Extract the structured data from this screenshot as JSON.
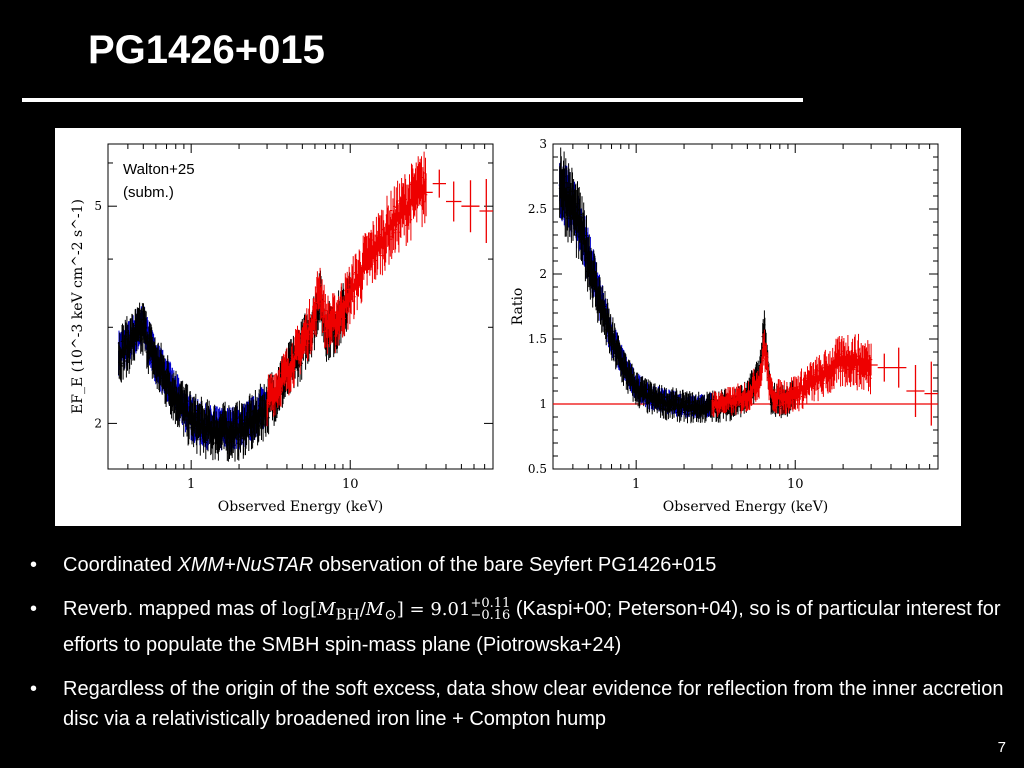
{
  "slide": {
    "title": "PG1426+015",
    "page_number": "7"
  },
  "figure": {
    "annotation_line1": "Walton+25",
    "annotation_line2": "(subm.)"
  },
  "bullets": [
    {
      "parts": {
        "p1": "Coordinated ",
        "p2": "XMM",
        "p3": "+",
        "p4": "NuSTAR",
        "p5": " observation of the bare Seyfert PG1426+015"
      }
    },
    {
      "parts": {
        "p1": "Reverb. mapped mas of ",
        "log": "log",
        "mbh": "M",
        "bh_sub": "BH",
        "msun": "M",
        "sun_sub": "⊙",
        "eq": " = 9.01",
        "sup": "+0.11",
        "sub": "−0.16",
        "p2": " (Kaspi+00; Peterson+04), so is of particular interest for efforts to populate the SMBH spin-mass plane (Piotrowska+24)"
      }
    },
    {
      "parts": {
        "p1": "Regardless of the origin of the soft excess, data show clear evidence for reflection from the inner accretion disc via a relativistically broadened iron line + Compton hump"
      }
    }
  ],
  "colors": {
    "xmm_pn": "#0000cc",
    "xmm_mos": "#000000",
    "nustar": "#ee0000",
    "reference_line": "#ee0000"
  },
  "chart_data": [
    {
      "type": "line",
      "xlabel": "Observed Energy (keV)",
      "ylabel": "EF_E (10^-3 keV cm^-2 s^-1)",
      "x_scale": "log",
      "y_scale": "log",
      "xlim": [
        0.3,
        79
      ],
      "ylim": [
        1.65,
        6.5
      ],
      "x_ticks": [
        1,
        10
      ],
      "x_tick_labels": [
        "1",
        "10"
      ],
      "y_ticks": [
        2,
        5
      ],
      "y_tick_labels": [
        "2",
        "5"
      ],
      "series": [
        {
          "x": [
            0.35,
            0.4,
            0.45,
            0.5,
            0.55,
            0.6,
            0.7,
            0.8,
            0.9,
            1.0,
            1.2,
            1.5,
            2.0,
            2.5,
            3.0
          ],
          "y": [
            2.7,
            2.8,
            2.95,
            3.02,
            2.78,
            2.6,
            2.42,
            2.26,
            2.14,
            2.05,
            1.98,
            1.95,
            1.96,
            2.05,
            2.18
          ]
        },
        {
          "x": [
            0.35,
            0.4,
            0.45,
            0.5,
            0.55,
            0.6,
            0.7,
            0.8,
            0.9,
            1.0,
            1.2,
            1.5,
            2.0,
            2.5,
            3.0,
            4.0,
            5.0,
            6.0,
            6.4,
            7.0,
            8.0,
            9.0,
            10.0
          ],
          "y": [
            2.68,
            2.78,
            2.9,
            2.98,
            2.75,
            2.58,
            2.4,
            2.24,
            2.12,
            2.03,
            1.96,
            1.93,
            1.94,
            2.02,
            2.15,
            2.45,
            2.75,
            3.1,
            3.45,
            2.95,
            3.0,
            3.2,
            3.4
          ]
        },
        {
          "x": [
            3.0,
            4.0,
            5.0,
            6.0,
            6.4,
            7.0,
            8.0,
            10.0,
            12.0,
            15.0,
            18.0,
            22.0,
            27.0,
            33.0,
            40.0,
            50.0,
            65.0,
            79.0
          ],
          "y": [
            2.2,
            2.48,
            2.8,
            3.15,
            3.6,
            3.05,
            3.05,
            3.45,
            3.85,
            4.25,
            4.6,
            4.95,
            5.3,
            5.5,
            5.1,
            5.0,
            4.9,
            4.9
          ]
        }
      ]
    },
    {
      "type": "line",
      "xlabel": "Observed Energy (keV)",
      "ylabel": "Ratio",
      "x_scale": "log",
      "ylim": [
        0.5,
        3
      ],
      "xlim": [
        0.3,
        79
      ],
      "x_ticks": [
        1,
        10
      ],
      "x_tick_labels": [
        "1",
        "10"
      ],
      "y_ticks": [
        0.5,
        1,
        1.5,
        2,
        2.5,
        3
      ],
      "y_tick_labels": [
        "0.5",
        "1",
        "1.5",
        "2",
        "2.5",
        "3"
      ],
      "reference_y": 1,
      "series": [
        {
          "x": [
            0.33,
            0.36,
            0.4,
            0.45,
            0.5,
            0.55,
            0.6,
            0.7,
            0.8,
            0.9,
            1.0,
            1.2,
            1.5,
            2.0,
            2.5,
            3.0
          ],
          "y": [
            2.7,
            2.6,
            2.5,
            2.35,
            2.15,
            1.95,
            1.78,
            1.52,
            1.35,
            1.22,
            1.14,
            1.06,
            1.02,
            0.99,
            0.98,
            0.99
          ]
        },
        {
          "x": [
            0.33,
            0.36,
            0.4,
            0.45,
            0.5,
            0.55,
            0.6,
            0.7,
            0.8,
            0.9,
            1.0,
            1.2,
            1.5,
            2.0,
            2.5,
            3.0,
            4.0,
            5.0,
            6.0,
            6.4,
            7.0,
            8.0,
            10.0
          ],
          "y": [
            2.75,
            2.62,
            2.5,
            2.33,
            2.13,
            1.93,
            1.76,
            1.5,
            1.33,
            1.2,
            1.12,
            1.05,
            1.01,
            0.98,
            0.97,
            0.98,
            1.0,
            1.05,
            1.25,
            1.55,
            1.05,
            1.02,
            1.06
          ]
        },
        {
          "x": [
            3.0,
            4.0,
            5.0,
            6.0,
            6.4,
            7.0,
            8.0,
            10.0,
            12.0,
            15.0,
            18.0,
            22.0,
            27.0,
            33.0,
            40.0,
            50.0,
            65.0,
            79.0
          ],
          "y": [
            1.0,
            1.02,
            1.06,
            1.2,
            1.45,
            1.08,
            1.05,
            1.08,
            1.15,
            1.22,
            1.3,
            1.35,
            1.3,
            1.28,
            1.28,
            1.1,
            1.08,
            1.08
          ]
        }
      ]
    }
  ]
}
